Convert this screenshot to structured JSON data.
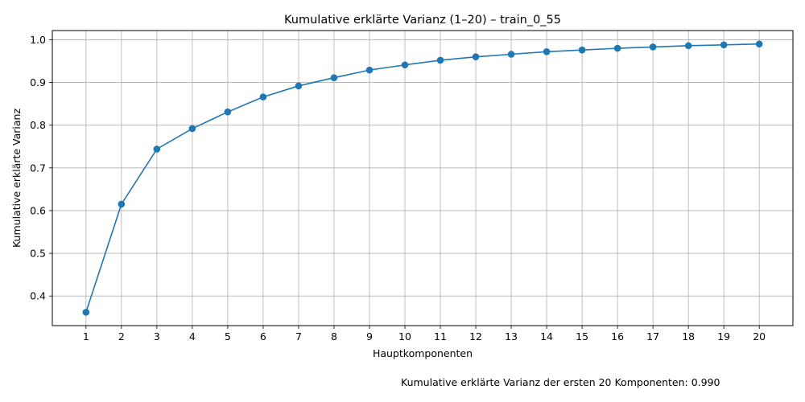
{
  "chart_data": {
    "type": "line",
    "title": "Kumulative erklärte Varianz (1–20) – train_0_55",
    "xlabel": "Hauptkomponenten",
    "ylabel": "Kumulative erklärte Varianz",
    "x": [
      1,
      2,
      3,
      4,
      5,
      6,
      7,
      8,
      9,
      10,
      11,
      12,
      13,
      14,
      15,
      16,
      17,
      18,
      19,
      20
    ],
    "series": [
      {
        "values": [
          0.362,
          0.615,
          0.744,
          0.792,
          0.831,
          0.866,
          0.892,
          0.911,
          0.929,
          0.941,
          0.952,
          0.96,
          0.966,
          0.972,
          0.976,
          0.98,
          0.983,
          0.986,
          0.988,
          0.99
        ],
        "color": "#1f77b4",
        "marker": "circle"
      }
    ],
    "xlim": [
      0.05,
      20.95
    ],
    "ylim": [
      0.3307,
      1.0215
    ],
    "xticks": [
      "1",
      "2",
      "3",
      "4",
      "5",
      "6",
      "7",
      "8",
      "9",
      "10",
      "11",
      "12",
      "13",
      "14",
      "15",
      "16",
      "17",
      "18",
      "19",
      "20"
    ],
    "yticks": [
      "0.4",
      "0.5",
      "0.6",
      "0.7",
      "0.8",
      "0.9",
      "1.0"
    ],
    "grid": true,
    "annotation": "Kumulative erklärte Varianz der ersten 20 Komponenten: 0.990"
  }
}
